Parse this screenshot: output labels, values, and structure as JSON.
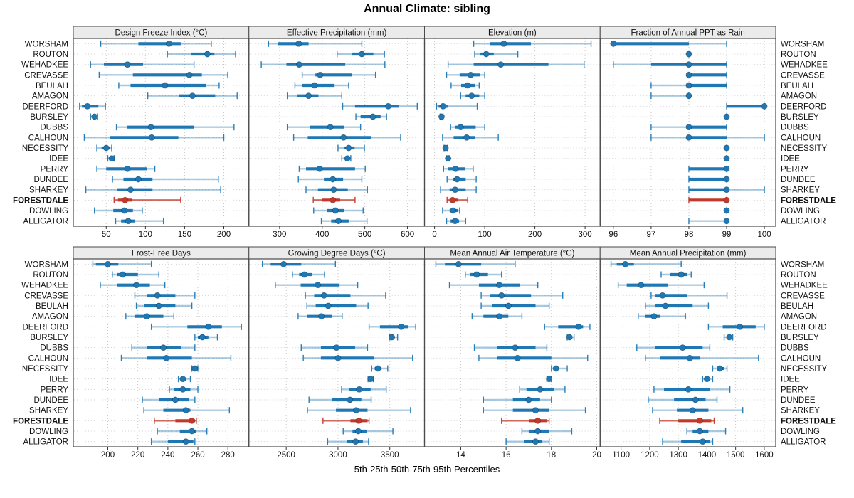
{
  "title": "Annual Climate: sibling",
  "caption": "5th-25th-50th-75th-95th Percentiles",
  "percentile_labels": [
    "5th",
    "25th",
    "50th",
    "75th",
    "95th"
  ],
  "sites": [
    "WORSHAM",
    "ROUTON",
    "WEHADKEE",
    "CREVASSE",
    "BEULAH",
    "AMAGON",
    "DEERFORD",
    "BURSLEY",
    "DUBBS",
    "CALHOUN",
    "NECESSITY",
    "IDEE",
    "PERRY",
    "DUNDEE",
    "SHARKEY",
    "FORESTDALE",
    "DOWLING",
    "ALLIGATOR"
  ],
  "highlight_site": "FORESTDALE",
  "colors": {
    "series_blue": "#1f77b4",
    "highlight_red": "#c0392b",
    "strip_bg": "#ebebeb",
    "panel_border": "#4a4a4a",
    "grid": "#c9c9c9",
    "tick": "#333333"
  },
  "chart_data": [
    {
      "type": "dot-interval",
      "title": "Design Freeze Index (°C)",
      "ticks": [
        50,
        100,
        150,
        200
      ],
      "xlim": [
        8,
        232
      ],
      "values": [
        [
          43,
          91,
          130,
          145,
          184
        ],
        [
          128,
          158,
          179,
          188,
          215
        ],
        [
          30,
          47,
          77,
          97,
          162
        ],
        [
          41,
          84,
          156,
          172,
          205
        ],
        [
          66,
          81,
          125,
          177,
          194
        ],
        [
          103,
          143,
          160,
          189,
          217
        ],
        [
          16,
          19,
          26,
          40,
          49
        ],
        [
          30,
          32,
          35,
          37,
          39
        ],
        [
          63,
          77,
          107,
          162,
          213
        ],
        [
          22,
          55,
          108,
          142,
          200
        ],
        [
          38,
          44,
          50,
          55,
          57
        ],
        [
          52,
          55,
          57,
          59,
          60
        ],
        [
          38,
          50,
          77,
          102,
          112
        ],
        [
          58,
          72,
          91,
          109,
          193
        ],
        [
          24,
          64,
          81,
          109,
          196
        ],
        [
          60,
          65,
          74,
          83,
          145
        ],
        [
          35,
          59,
          73,
          84,
          96
        ],
        [
          62,
          69,
          78,
          87,
          123
        ]
      ]
    },
    {
      "type": "dot-interval",
      "title": "Effective Precipitation (mm)",
      "ticks": [
        300,
        400,
        500,
        600
      ],
      "xlim": [
        228,
        640
      ],
      "values": [
        [
          274,
          296,
          345,
          368,
          493
        ],
        [
          435,
          469,
          493,
          520,
          546
        ],
        [
          257,
          316,
          346,
          454,
          547
        ],
        [
          353,
          384,
          395,
          469,
          525
        ],
        [
          336,
          353,
          382,
          429,
          462
        ],
        [
          318,
          342,
          368,
          391,
          446
        ],
        [
          448,
          477,
          555,
          579,
          623
        ],
        [
          479,
          490,
          519,
          537,
          551
        ],
        [
          318,
          372,
          419,
          451,
          490
        ],
        [
          333,
          366,
          450,
          514,
          584
        ],
        [
          437,
          451,
          462,
          476,
          499
        ],
        [
          446,
          453,
          459,
          464,
          467
        ],
        [
          346,
          362,
          394,
          477,
          501
        ],
        [
          344,
          404,
          425,
          449,
          493
        ],
        [
          362,
          390,
          427,
          460,
          506
        ],
        [
          379,
          400,
          425,
          442,
          477
        ],
        [
          380,
          412,
          431,
          451,
          496
        ],
        [
          398,
          421,
          438,
          462,
          505
        ]
      ]
    },
    {
      "type": "dot-interval",
      "title": "Elevation (m)",
      "ticks": [
        0,
        100,
        200,
        300
      ],
      "xlim": [
        -20,
        330
      ],
      "values": [
        [
          78,
          110,
          138,
          192,
          312
        ],
        [
          80,
          91,
          103,
          118,
          166
        ],
        [
          27,
          78,
          132,
          227,
          298
        ],
        [
          24,
          50,
          72,
          91,
          100
        ],
        [
          33,
          53,
          66,
          80,
          89
        ],
        [
          52,
          62,
          74,
          89,
          100
        ],
        [
          4,
          8,
          17,
          26,
          85
        ],
        [
          11,
          12,
          14,
          15,
          17
        ],
        [
          32,
          41,
          52,
          82,
          100
        ],
        [
          16,
          38,
          64,
          80,
          127
        ],
        [
          19,
          21,
          22,
          24,
          26
        ],
        [
          24,
          25,
          27,
          28,
          29
        ],
        [
          18,
          27,
          42,
          61,
          77
        ],
        [
          25,
          36,
          45,
          62,
          83
        ],
        [
          12,
          30,
          41,
          62,
          83
        ],
        [
          25,
          30,
          36,
          47,
          66
        ],
        [
          16,
          30,
          37,
          46,
          50
        ],
        [
          24,
          32,
          41,
          49,
          62
        ]
      ]
    },
    {
      "type": "dot-interval",
      "title": "Fraction of Annual PPT as Rain",
      "ticks": [
        96,
        97,
        98,
        99,
        100
      ],
      "xlim": [
        95.65,
        100.3
      ],
      "values": [
        [
          96,
          96,
          96,
          98,
          99
        ],
        [
          98,
          98,
          98,
          98,
          98
        ],
        [
          96,
          97,
          98,
          99,
          99
        ],
        [
          98,
          98,
          98,
          99,
          99
        ],
        [
          97,
          98,
          98,
          99,
          99
        ],
        [
          97,
          98,
          98,
          98,
          98
        ],
        [
          99,
          99,
          100,
          100,
          100
        ],
        [
          99,
          99,
          99,
          99,
          99
        ],
        [
          97,
          98,
          98,
          99,
          99
        ],
        [
          97,
          98,
          98,
          99,
          100
        ],
        [
          99,
          99,
          99,
          99,
          99
        ],
        [
          99,
          99,
          99,
          99,
          99
        ],
        [
          98,
          98,
          99,
          99,
          99
        ],
        [
          98,
          98,
          99,
          99,
          99
        ],
        [
          98,
          98,
          99,
          99,
          100
        ],
        [
          98,
          98,
          99,
          99,
          99
        ],
        [
          99,
          99,
          99,
          99,
          99
        ],
        [
          98,
          99,
          99,
          99,
          99
        ]
      ]
    },
    {
      "type": "dot-interval",
      "title": "Frost-Free Days",
      "ticks": [
        200,
        220,
        240,
        260,
        280
      ],
      "xlim": [
        177,
        294
      ],
      "values": [
        [
          190,
          192,
          200,
          207,
          229
        ],
        [
          203,
          206,
          210,
          220,
          234
        ],
        [
          195,
          206,
          219,
          228,
          238
        ],
        [
          218,
          226,
          233,
          245,
          258
        ],
        [
          219,
          224,
          234,
          245,
          256
        ],
        [
          212,
          218,
          226,
          237,
          244
        ],
        [
          229,
          253,
          267,
          276,
          289
        ],
        [
          258,
          260,
          263,
          267,
          273
        ],
        [
          216,
          226,
          237,
          249,
          258
        ],
        [
          209,
          226,
          239,
          256,
          282
        ],
        [
          256,
          257,
          258,
          259,
          260
        ],
        [
          247,
          249,
          250,
          252,
          255
        ],
        [
          241,
          244,
          250,
          255,
          260
        ],
        [
          223,
          234,
          245,
          254,
          258
        ],
        [
          224,
          237,
          252,
          255,
          281
        ],
        [
          231,
          245,
          256,
          258,
          259
        ],
        [
          233,
          248,
          256,
          259,
          266
        ],
        [
          229,
          240,
          252,
          257,
          258
        ]
      ]
    },
    {
      "type": "dot-interval",
      "title": "Growing Degree Days (°C)",
      "ticks": [
        2500,
        3000,
        3500
      ],
      "xlim": [
        2140,
        3835
      ],
      "values": [
        [
          2270,
          2350,
          2475,
          2645,
          2975
        ],
        [
          2560,
          2625,
          2675,
          2750,
          2870
        ],
        [
          2395,
          2640,
          2805,
          3015,
          3190
        ],
        [
          2685,
          2770,
          2865,
          3120,
          3460
        ],
        [
          2700,
          2785,
          2905,
          3175,
          3290
        ],
        [
          2615,
          2700,
          2840,
          2945,
          3040
        ],
        [
          3300,
          3405,
          3610,
          3675,
          3750
        ],
        [
          3500,
          3510,
          3520,
          3545,
          3575
        ],
        [
          2645,
          2835,
          2985,
          3165,
          3285
        ],
        [
          2665,
          2835,
          3000,
          3350,
          3720
        ],
        [
          3325,
          3355,
          3385,
          3420,
          3480
        ],
        [
          3290,
          3305,
          3315,
          3325,
          3340
        ],
        [
          3035,
          3105,
          3205,
          3315,
          3465
        ],
        [
          2720,
          2940,
          3115,
          3225,
          3320
        ],
        [
          2705,
          2980,
          3175,
          3285,
          3700
        ],
        [
          2855,
          3120,
          3200,
          3285,
          3300
        ],
        [
          3050,
          3140,
          3195,
          3280,
          3530
        ],
        [
          2900,
          3085,
          3170,
          3240,
          3295
        ]
      ]
    },
    {
      "type": "dot-interval",
      "title": "Mean Annual Air Temperature (°C)",
      "ticks": [
        14,
        16,
        18,
        20
      ],
      "xlim": [
        12.4,
        20.15
      ],
      "values": [
        [
          12.9,
          13.3,
          13.9,
          14.9,
          16.4
        ],
        [
          14.2,
          14.4,
          14.7,
          15.2,
          15.8
        ],
        [
          13.5,
          14.8,
          15.7,
          16.6,
          17.4
        ],
        [
          14.9,
          15.3,
          15.8,
          17.1,
          18.5
        ],
        [
          14.9,
          15.4,
          16.1,
          17.3,
          17.9
        ],
        [
          14.5,
          15.0,
          15.7,
          16.1,
          16.7
        ],
        [
          17.7,
          18.3,
          19.2,
          19.4,
          19.7
        ],
        [
          18.7,
          18.75,
          18.8,
          18.9,
          19.0
        ],
        [
          14.6,
          15.6,
          16.4,
          17.3,
          17.8
        ],
        [
          14.8,
          15.6,
          16.5,
          18.0,
          19.6
        ],
        [
          18.0,
          18.1,
          18.2,
          18.3,
          18.7
        ],
        [
          17.8,
          17.85,
          17.9,
          17.95,
          18.0
        ],
        [
          16.6,
          16.9,
          17.5,
          18.1,
          18.6
        ],
        [
          15.0,
          16.3,
          17.0,
          17.5,
          18.0
        ],
        [
          15.0,
          16.3,
          17.3,
          17.9,
          19.5
        ],
        [
          15.8,
          17.0,
          17.4,
          17.8,
          17.9
        ],
        [
          16.7,
          17.0,
          17.4,
          17.9,
          18.9
        ],
        [
          16.0,
          16.8,
          17.3,
          17.6,
          17.9
        ]
      ]
    },
    {
      "type": "dot-interval",
      "title": "Mean Annual Precipitation (mm)",
      "ticks": [
        1100,
        1200,
        1300,
        1400,
        1500,
        1600
      ],
      "xlim": [
        1027,
        1640
      ],
      "values": [
        [
          1065,
          1085,
          1115,
          1145,
          1310
        ],
        [
          1240,
          1270,
          1310,
          1330,
          1345
        ],
        [
          1090,
          1120,
          1170,
          1265,
          1390
        ],
        [
          1205,
          1220,
          1245,
          1330,
          1470
        ],
        [
          1185,
          1220,
          1255,
          1350,
          1405
        ],
        [
          1160,
          1185,
          1215,
          1235,
          1325
        ],
        [
          1405,
          1455,
          1515,
          1570,
          1600
        ],
        [
          1460,
          1470,
          1478,
          1483,
          1490
        ],
        [
          1155,
          1220,
          1315,
          1385,
          1410
        ],
        [
          1185,
          1235,
          1340,
          1375,
          1580
        ],
        [
          1420,
          1435,
          1445,
          1460,
          1470
        ],
        [
          1385,
          1395,
          1400,
          1410,
          1420
        ],
        [
          1215,
          1250,
          1335,
          1410,
          1480
        ],
        [
          1195,
          1285,
          1360,
          1395,
          1435
        ],
        [
          1210,
          1295,
          1350,
          1405,
          1525
        ],
        [
          1235,
          1300,
          1375,
          1415,
          1425
        ],
        [
          1330,
          1350,
          1375,
          1405,
          1465
        ],
        [
          1245,
          1310,
          1385,
          1410,
          1420
        ]
      ]
    }
  ]
}
